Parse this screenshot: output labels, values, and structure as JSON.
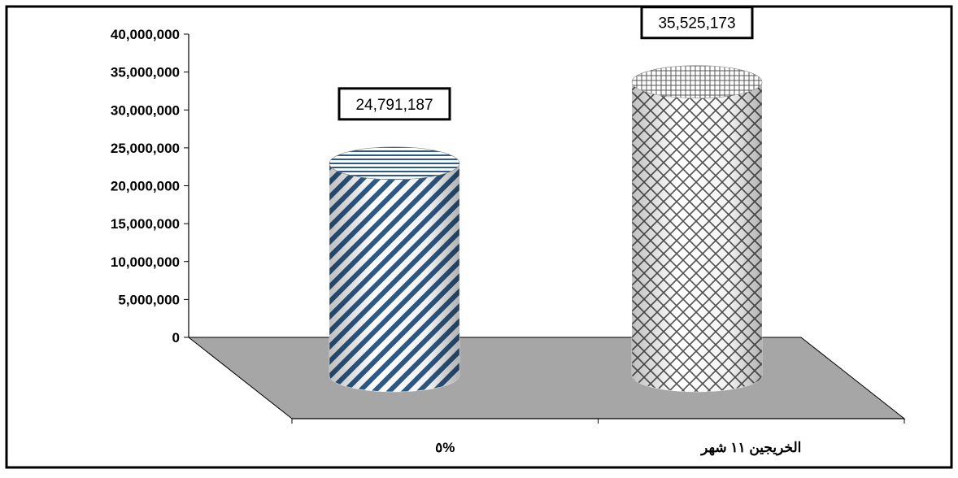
{
  "chart_data": {
    "type": "bar",
    "style": "3d-cylinder",
    "categories": [
      "%٥",
      "الخريجين ١١ شهر"
    ],
    "values": [
      24791187,
      35525173
    ],
    "data_labels": [
      "24,791,187",
      "35,525,173"
    ],
    "y_ticks": [
      0,
      5000000,
      10000000,
      15000000,
      20000000,
      25000000,
      30000000,
      35000000,
      40000000
    ],
    "y_tick_labels": [
      "0",
      "5,000,000",
      "10,000,000",
      "15,000,000",
      "20,000,000",
      "25,000,000",
      "30,000,000",
      "35,000,000",
      "40,000,000"
    ],
    "ylim": [
      0,
      40000000
    ],
    "title": "",
    "xlabel": "",
    "ylabel": "",
    "legend": "none",
    "grid": false,
    "colors": {
      "series_1_pattern": "#2e5a87",
      "series_2_pattern": "#555555",
      "floor": "#a6a6a6",
      "frame": "#000000"
    }
  }
}
